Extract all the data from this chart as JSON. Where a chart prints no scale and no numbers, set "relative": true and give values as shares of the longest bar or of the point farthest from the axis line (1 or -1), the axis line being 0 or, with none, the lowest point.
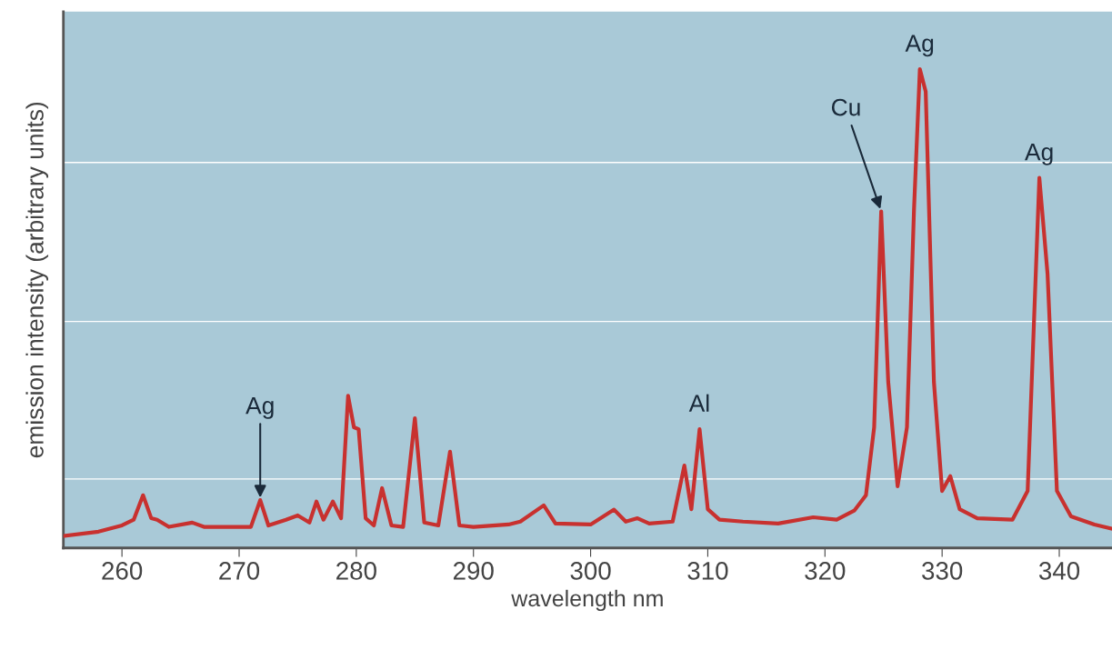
{
  "chart_data": {
    "type": "line",
    "relative": true,
    "xlabel": "wavelength nm",
    "ylabel": "emission intensity (arbitrary units)",
    "xlim": [
      255,
      344.5
    ],
    "xticks": [
      260,
      270,
      280,
      290,
      300,
      310,
      320,
      330,
      340
    ],
    "tick_labels": "x",
    "grid": false,
    "series": [
      {
        "color": "#c8312f",
        "x": [
          255,
          258,
          260,
          261,
          261.8,
          262.5,
          263,
          264,
          266,
          267,
          271,
          271.8,
          272.5,
          274,
          275,
          276,
          276.6,
          277.2,
          278,
          278.7,
          279.3,
          279.8,
          280.2,
          280.8,
          281.5,
          282.2,
          283,
          284,
          285,
          285.8,
          287,
          288,
          288.8,
          290,
          293,
          294,
          296,
          297,
          300,
          302,
          303,
          304,
          305,
          307,
          308,
          308.6,
          309.3,
          310,
          311,
          313,
          316,
          319,
          321,
          322.5,
          323.5,
          324.2,
          324.8,
          325.4,
          326.2,
          327,
          327.6,
          328.1,
          328.6,
          329.3,
          330,
          330.7,
          331.5,
          333,
          336,
          337.3,
          338.3,
          339,
          339.8,
          341,
          343,
          344.5
        ],
        "values": [
          0.025,
          0.034,
          0.047,
          0.059,
          0.11,
          0.062,
          0.059,
          0.044,
          0.053,
          0.044,
          0.044,
          0.1,
          0.047,
          0.059,
          0.068,
          0.053,
          0.097,
          0.059,
          0.097,
          0.062,
          0.318,
          0.252,
          0.248,
          0.062,
          0.047,
          0.125,
          0.047,
          0.044,
          0.271,
          0.053,
          0.047,
          0.201,
          0.047,
          0.044,
          0.049,
          0.055,
          0.089,
          0.051,
          0.049,
          0.08,
          0.055,
          0.062,
          0.051,
          0.055,
          0.172,
          0.081,
          0.248,
          0.081,
          0.059,
          0.055,
          0.051,
          0.064,
          0.059,
          0.078,
          0.11,
          0.252,
          0.703,
          0.347,
          0.129,
          0.252,
          0.706,
          1.0,
          0.953,
          0.347,
          0.119,
          0.15,
          0.081,
          0.062,
          0.059,
          0.119,
          0.773,
          0.572,
          0.119,
          0.066,
          0.049,
          0.04
        ]
      }
    ],
    "ref_lines": [
      {
        "axis": "y",
        "value": 0.144,
        "color": "#ffffff"
      },
      {
        "axis": "y",
        "value": 0.473,
        "color": "#ffffff"
      },
      {
        "axis": "y",
        "value": 0.805,
        "color": "#ffffff"
      }
    ],
    "annotations": [
      {
        "text": "Ag",
        "x": 271.8,
        "y": 0.1
      },
      {
        "text": "Al",
        "x": 309.3,
        "y": 0.248
      },
      {
        "text": "Cu",
        "x": 324.8,
        "y": 0.703
      },
      {
        "text": "Ag",
        "x": 328.1,
        "y": 1.0
      },
      {
        "text": "Ag",
        "x": 338.3,
        "y": 0.773
      }
    ]
  }
}
